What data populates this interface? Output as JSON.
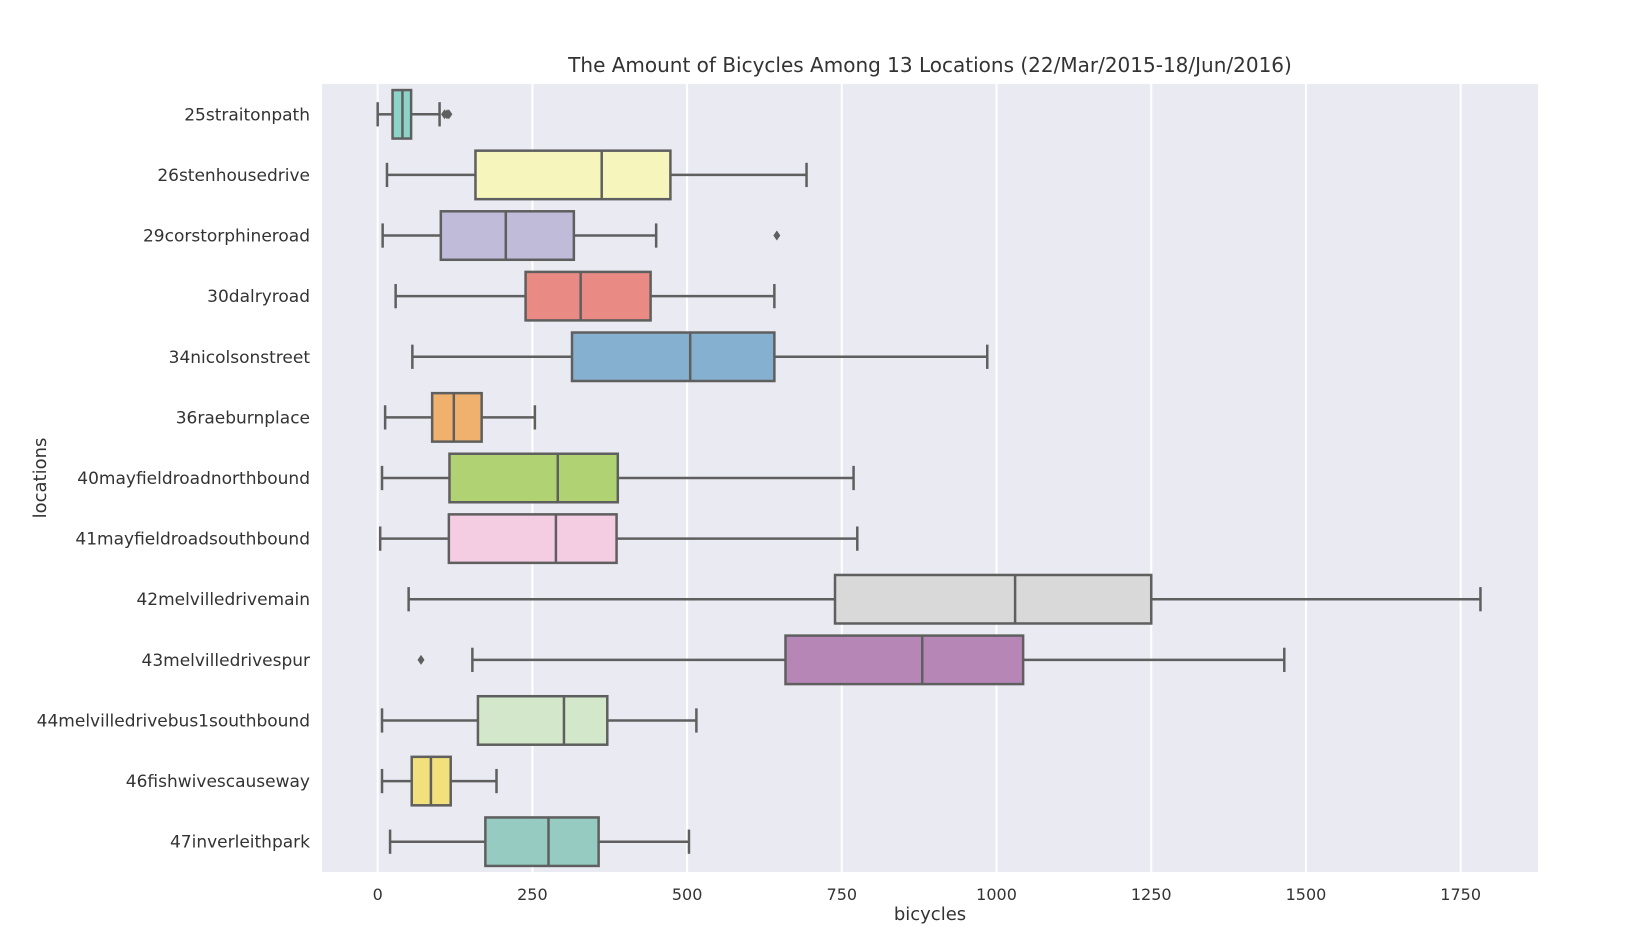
{
  "chart_data": {
    "type": "boxplot",
    "orientation": "horizontal",
    "title": "The Amount of Bicycles Among 13 Locations (22/Mar/2015-18/Jun/2016)",
    "xlabel": "bicycles",
    "ylabel": "locations",
    "xlim": [
      -90,
      1875
    ],
    "xticks": [
      0,
      250,
      500,
      750,
      1000,
      1250,
      1500,
      1750
    ],
    "grid": true,
    "style": {
      "plot_background": "#eaeaf2",
      "grid_color": "#ffffff",
      "box_edge": "#5f5f5f"
    },
    "categories": [
      "25straitonpath",
      "26stenhousedrive",
      "29corstorphineroad",
      "30dalryroad",
      "34nicolsonstreet",
      "36raeburnplace",
      "40mayfieldroadnorthbound",
      "41mayfieldroadsouthbound",
      "42melvilledrivemain",
      "43melvilledrivespur",
      "44melvilledrivebus1southbound",
      "46fishwivescauseway",
      "47inverleithpark"
    ],
    "boxes": [
      {
        "whisker_low": 0,
        "q1": 24,
        "median": 40,
        "q3": 54,
        "whisker_high": 100,
        "outliers": [
          108,
          112,
          115
        ],
        "color": "#8dd3c7"
      },
      {
        "whisker_low": 15,
        "q1": 158,
        "median": 362,
        "q3": 473,
        "whisker_high": 693,
        "outliers": [],
        "color": "#f6f6bc"
      },
      {
        "whisker_low": 8,
        "q1": 102,
        "median": 207,
        "q3": 317,
        "whisker_high": 450,
        "outliers": [
          645
        ],
        "color": "#bfbbd9"
      },
      {
        "whisker_low": 29,
        "q1": 239,
        "median": 328,
        "q3": 441,
        "whisker_high": 641,
        "outliers": [],
        "color": "#e98b84"
      },
      {
        "whisker_low": 56,
        "q1": 314,
        "median": 505,
        "q3": 641,
        "whisker_high": 985,
        "outliers": [],
        "color": "#86b0d0"
      },
      {
        "whisker_low": 12,
        "q1": 88,
        "median": 123,
        "q3": 168,
        "whisker_high": 254,
        "outliers": [],
        "color": "#efb16d"
      },
      {
        "whisker_low": 7,
        "q1": 116,
        "median": 291,
        "q3": 388,
        "whisker_high": 769,
        "outliers": [],
        "color": "#b1d272"
      },
      {
        "whisker_low": 4,
        "q1": 115,
        "median": 288,
        "q3": 386,
        "whisker_high": 775,
        "outliers": [],
        "color": "#f4cde2"
      },
      {
        "whisker_low": 50,
        "q1": 739,
        "median": 1030,
        "q3": 1250,
        "whisker_high": 1782,
        "outliers": [],
        "color": "#d9d9d9"
      },
      {
        "whisker_low": 153,
        "q1": 659,
        "median": 880,
        "q3": 1043,
        "whisker_high": 1465,
        "outliers": [
          70
        ],
        "color": "#b686b7"
      },
      {
        "whisker_low": 7,
        "q1": 162,
        "median": 301,
        "q3": 371,
        "whisker_high": 515,
        "outliers": [],
        "color": "#d3e8cb"
      },
      {
        "whisker_low": 7,
        "q1": 55,
        "median": 86,
        "q3": 118,
        "whisker_high": 192,
        "outliers": [],
        "color": "#f2e07c"
      },
      {
        "whisker_low": 20,
        "q1": 174,
        "median": 276,
        "q3": 357,
        "whisker_high": 503,
        "outliers": [],
        "color": "#95cbc1"
      }
    ]
  }
}
